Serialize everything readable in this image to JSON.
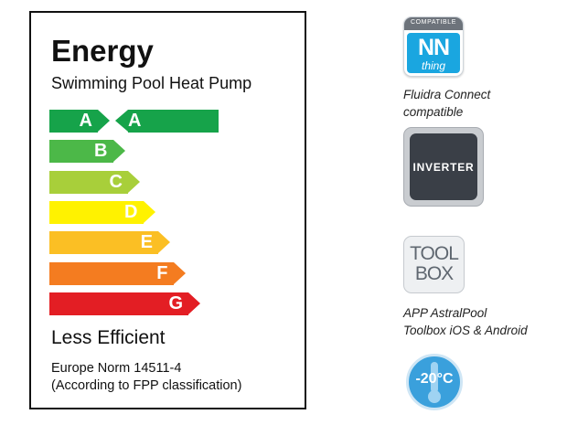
{
  "energy_label": {
    "title": "Energy",
    "subtitle": "Swimming Pool Heat Pump",
    "classes": [
      {
        "letter": "A",
        "color": "#16a34a"
      },
      {
        "letter": "B",
        "color": "#4cb848"
      },
      {
        "letter": "C",
        "color": "#a8cf3a"
      },
      {
        "letter": "D",
        "color": "#fff200"
      },
      {
        "letter": "E",
        "color": "#fbbf24"
      },
      {
        "letter": "F",
        "color": "#f47c20"
      },
      {
        "letter": "G",
        "color": "#e31e24"
      }
    ],
    "rating": "A",
    "less_efficient": "Less Efficient",
    "norm_line1": "Europe Norm 14511-4",
    "norm_line2": "(According to FPP classification)"
  },
  "features": {
    "fluidra": {
      "badge_top": "COMPATIBLE",
      "badge_main": "NN",
      "badge_sub": "thing",
      "caption_line1": "Fluidra Connect",
      "caption_line2": "compatible",
      "color": "#1aa6e0"
    },
    "inverter": {
      "label": "INVERTER",
      "color": "#3a3f47"
    },
    "toolbox": {
      "logo_line1": "TOOL",
      "logo_line2": "BOX",
      "caption_line1": "APP AstralPool",
      "caption_line2": "Toolbox iOS & Android"
    },
    "temperature": {
      "label": "-20°C",
      "icon": "thermometer-icon",
      "color": "#3aa0dc"
    }
  }
}
